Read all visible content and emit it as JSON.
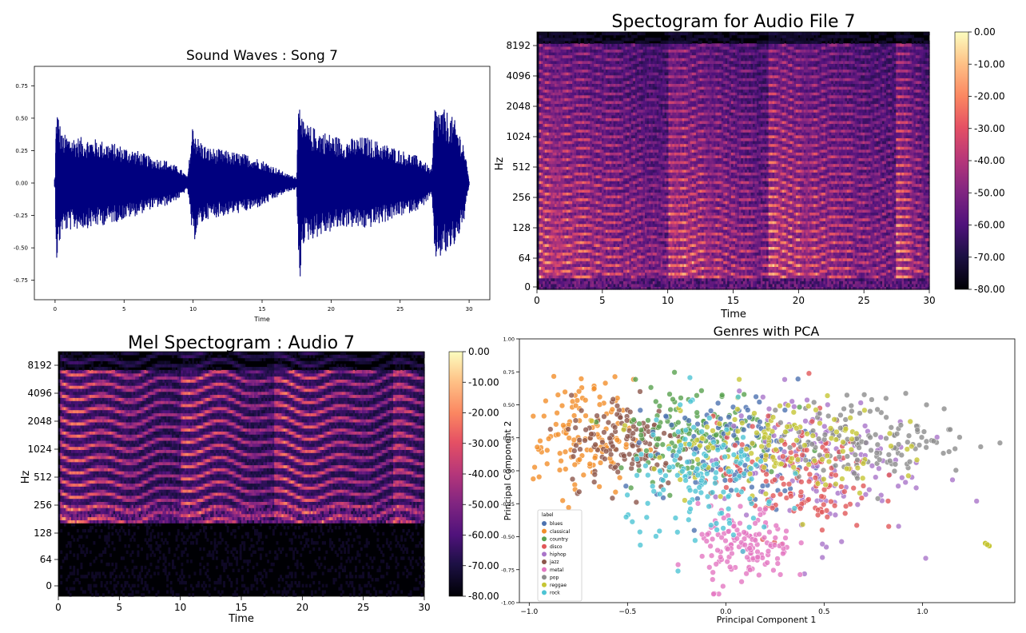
{
  "chart_data": [
    {
      "type": "line",
      "title": "Sound Waves : Song 7",
      "xlabel": "Time",
      "ylabel": "",
      "xlim": [
        -1.5,
        31.5
      ],
      "ylim": [
        -0.9,
        0.9
      ],
      "xticks": [
        0,
        5,
        10,
        15,
        20,
        25,
        30
      ],
      "yticks": [
        -0.75,
        -0.5,
        -0.25,
        0.0,
        0.25,
        0.5,
        0.75
      ],
      "ytick_labels": [
        "-0.75",
        "-0.50",
        "-0.25",
        "0.00",
        "0.25",
        "0.50",
        "0.75"
      ],
      "color": "#00007f",
      "envelope": {
        "t": [
          0,
          0.1,
          0.5,
          1.5,
          3,
          4.5,
          6,
          7,
          8,
          9,
          9.6,
          10,
          10.3,
          11,
          12,
          13,
          14,
          15,
          16,
          16.8,
          17.5,
          17.7,
          17.9,
          18.5,
          19.5,
          21,
          22.5,
          24,
          25.5,
          26.5,
          27.3,
          27.5,
          28,
          28.5,
          29,
          29.6,
          30
        ],
        "amp": [
          0.05,
          0.62,
          0.38,
          0.36,
          0.34,
          0.3,
          0.25,
          0.2,
          0.18,
          0.12,
          0.05,
          0.49,
          0.36,
          0.28,
          0.26,
          0.24,
          0.22,
          0.18,
          0.12,
          0.07,
          0.05,
          0.88,
          0.48,
          0.44,
          0.4,
          0.34,
          0.36,
          0.3,
          0.24,
          0.2,
          0.1,
          0.6,
          0.58,
          0.55,
          0.48,
          0.32,
          0.02
        ]
      }
    },
    {
      "type": "heatmap",
      "title": "Spectogram for Audio File 7",
      "xlabel": "Time",
      "ylabel": "Hz",
      "xlim": [
        0,
        30
      ],
      "xticks": [
        0,
        5,
        10,
        15,
        20,
        25,
        30
      ],
      "ytick_labels": [
        "0",
        "64",
        "128",
        "256",
        "512",
        "1024",
        "2048",
        "4096",
        "8192"
      ],
      "colorbar_ticks": [
        "0.00",
        "-10.00",
        "-20.00",
        "-30.00",
        "-40.00",
        "-50.00",
        "-60.00",
        "-70.00",
        "-80.00"
      ],
      "colorbar_range": [
        -80,
        0
      ],
      "colormap": "magma"
    },
    {
      "type": "heatmap",
      "title": "Mel Spectogram : Audio 7",
      "xlabel": "Time",
      "ylabel": "Hz",
      "xlim": [
        0,
        30
      ],
      "xticks": [
        0,
        5,
        10,
        15,
        20,
        25,
        30
      ],
      "ytick_labels": [
        "0",
        "64",
        "128",
        "256",
        "512",
        "1024",
        "2048",
        "4096",
        "8192"
      ],
      "colorbar_ticks": [
        "0.00",
        "-10.00",
        "-20.00",
        "-30.00",
        "-40.00",
        "-50.00",
        "-60.00",
        "-70.00",
        "-80.00"
      ],
      "colorbar_range": [
        -80,
        0
      ],
      "colormap": "magma"
    },
    {
      "type": "scatter",
      "title": "Genres with PCA",
      "xlabel": "Principal Component 1",
      "ylabel": "Principal Component 2",
      "xlim": [
        -1.05,
        1.47
      ],
      "ylim": [
        -1.0,
        1.0
      ],
      "xticks": [
        -1.0,
        -0.5,
        0.0,
        0.5,
        1.0
      ],
      "xtick_labels": [
        "−1.0",
        "−0.5",
        "0.0",
        "0.5",
        "1.0"
      ],
      "yticks": [
        -1.0,
        -0.75,
        -0.5,
        -0.25,
        0.0,
        0.25,
        0.5,
        0.75,
        1.0
      ],
      "ytick_labels": [
        "-1.00",
        "-0.75",
        "-0.50",
        "-0.25",
        "0.00",
        "0.25",
        "0.50",
        "0.75",
        "1.00"
      ],
      "legend_title": "label",
      "legend_position": "lower-left",
      "series": [
        {
          "name": "blues",
          "color": "#4c72b0",
          "cx": 0.05,
          "cy": 0.15,
          "sx": 0.2,
          "sy": 0.2
        },
        {
          "name": "classical",
          "color": "#f28e2b",
          "cx": -0.75,
          "cy": 0.25,
          "sx": 0.14,
          "sy": 0.22
        },
        {
          "name": "country",
          "color": "#59a14f",
          "cx": -0.15,
          "cy": 0.3,
          "sx": 0.22,
          "sy": 0.18
        },
        {
          "name": "disco",
          "color": "#e15759",
          "cx": 0.35,
          "cy": -0.05,
          "sx": 0.2,
          "sy": 0.22
        },
        {
          "name": "hiphop",
          "color": "#a974c9",
          "cx": 0.45,
          "cy": 0.05,
          "sx": 0.25,
          "sy": 0.28
        },
        {
          "name": "jazz",
          "color": "#8c564b",
          "cx": -0.5,
          "cy": 0.22,
          "sx": 0.15,
          "sy": 0.18
        },
        {
          "name": "metal",
          "color": "#e377c2",
          "cx": 0.1,
          "cy": -0.58,
          "sx": 0.12,
          "sy": 0.15
        },
        {
          "name": "pop",
          "color": "#8c8c8c",
          "cx": 0.75,
          "cy": 0.25,
          "sx": 0.25,
          "sy": 0.15
        },
        {
          "name": "reggae",
          "color": "#c6c635",
          "cx": 0.2,
          "cy": 0.2,
          "sx": 0.3,
          "sy": 0.2
        },
        {
          "name": "rock",
          "color": "#4dc4d4",
          "cx": -0.1,
          "cy": -0.12,
          "sx": 0.2,
          "sy": 0.25
        }
      ]
    }
  ]
}
